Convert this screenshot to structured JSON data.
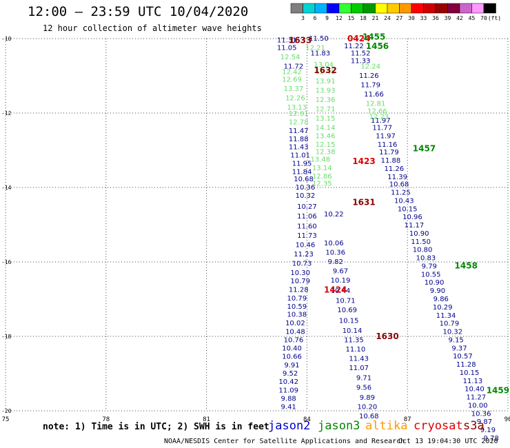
{
  "title": "12:00 – 23:59 UTC 10/04/2020",
  "subtitle": "12 hour collection of altimeter wave heights",
  "legend": {
    "unit": "(ft)",
    "ticks": [
      "3",
      "6",
      "9",
      "12",
      "15",
      "18",
      "21",
      "24",
      "27",
      "30",
      "33",
      "36",
      "39",
      "42",
      "45",
      "70"
    ],
    "colors": [
      "#7f7f7f",
      "#00d4d4",
      "#00b3ff",
      "#0000ff",
      "#33ff33",
      "#00cc00",
      "#009900",
      "#ffff00",
      "#ffcc00",
      "#ff9900",
      "#ff0000",
      "#cc0000",
      "#990000",
      "#800040",
      "#cc66cc",
      "#ff99ff",
      "#000000"
    ]
  },
  "axes": {
    "x_ticks": [
      "75",
      "78",
      "81",
      "84",
      "87",
      "90"
    ],
    "y_ticks": [
      "-10",
      "-12",
      "-14",
      "-16",
      "-18",
      "-20"
    ]
  },
  "footer": {
    "note": "note: 1) Time is in UTC; 2) SWH is in feet",
    "satellites": [
      {
        "name": "jason2",
        "color": "#0000cc"
      },
      {
        "name": "jason3",
        "color": "#008800"
      },
      {
        "name": "altika",
        "color": "#ff9900"
      },
      {
        "name": "cryosat",
        "color": "#dd0000"
      },
      {
        "name": "s3a",
        "color": "#880000"
      }
    ],
    "credit": "NOAA/NESDIS Center for Satellite Applications and Research",
    "timestamp": "Oct 13 19:04:30 UTC 2020"
  },
  "tracks": [
    {
      "color": "#00008b",
      "points": [
        {
          "lon": 83.4,
          "lat": -10.05,
          "v": "11.31"
        },
        {
          "lon": 83.4,
          "lat": -10.25,
          "v": "11.05"
        },
        {
          "lon": 83.6,
          "lat": -10.75,
          "v": "11.72"
        },
        {
          "lon": 83.75,
          "lat": -12.48,
          "v": "11.47"
        },
        {
          "lon": 83.75,
          "lat": -12.7,
          "v": "11.88"
        },
        {
          "lon": 83.75,
          "lat": -12.92,
          "v": "11.43"
        },
        {
          "lon": 83.8,
          "lat": -13.14,
          "v": "11.01"
        },
        {
          "lon": 83.85,
          "lat": -13.36,
          "v": "11.95"
        },
        {
          "lon": 83.85,
          "lat": -13.58,
          "v": "11.84"
        },
        {
          "lon": 83.9,
          "lat": -13.78,
          "v": "10.68"
        },
        {
          "lon": 83.95,
          "lat": -14.0,
          "v": "10.36"
        },
        {
          "lon": 83.95,
          "lat": -14.22,
          "v": "10.32"
        },
        {
          "lon": 84.0,
          "lat": -14.52,
          "v": "10.27"
        },
        {
          "lon": 84.0,
          "lat": -14.78,
          "v": "11.06"
        },
        {
          "lon": 84.0,
          "lat": -15.05,
          "v": "11.60"
        },
        {
          "lon": 84.0,
          "lat": -15.3,
          "v": "11.73"
        },
        {
          "lon": 83.95,
          "lat": -15.55,
          "v": "10.46"
        },
        {
          "lon": 83.9,
          "lat": -15.8,
          "v": "11.23"
        },
        {
          "lon": 83.85,
          "lat": -16.05,
          "v": "10.73"
        },
        {
          "lon": 83.8,
          "lat": -16.3,
          "v": "10.30"
        },
        {
          "lon": 83.8,
          "lat": -16.52,
          "v": "10.79"
        },
        {
          "lon": 83.75,
          "lat": -16.75,
          "v": "11.28"
        },
        {
          "lon": 83.7,
          "lat": -16.98,
          "v": "10.79"
        },
        {
          "lon": 83.7,
          "lat": -17.2,
          "v": "10.59"
        },
        {
          "lon": 83.7,
          "lat": -17.42,
          "v": "10.38"
        },
        {
          "lon": 83.65,
          "lat": -17.65,
          "v": "10.02"
        },
        {
          "lon": 83.65,
          "lat": -17.88,
          "v": "10.48"
        },
        {
          "lon": 83.6,
          "lat": -18.1,
          "v": "10.76"
        },
        {
          "lon": 83.55,
          "lat": -18.32,
          "v": "10.40"
        },
        {
          "lon": 83.55,
          "lat": -18.55,
          "v": "10.66"
        },
        {
          "lon": 83.55,
          "lat": -18.78,
          "v": "9.91"
        },
        {
          "lon": 83.5,
          "lat": -19.0,
          "v": "9.52"
        },
        {
          "lon": 83.45,
          "lat": -19.22,
          "v": "10.42"
        },
        {
          "lon": 83.45,
          "lat": -19.45,
          "v": "11.09"
        },
        {
          "lon": 83.45,
          "lat": -19.68,
          "v": "9.88"
        },
        {
          "lon": 83.45,
          "lat": -19.9,
          "v": "9.41"
        }
      ]
    },
    {
      "color": "#00008b",
      "points": [
        {
          "lon": 84.35,
          "lat": -10.0,
          "v": "11.50"
        },
        {
          "lon": 84.4,
          "lat": -10.4,
          "v": "11.83"
        },
        {
          "lon": 84.8,
          "lat": -14.72,
          "v": "10.22"
        },
        {
          "lon": 84.8,
          "lat": -15.5,
          "v": "10.06"
        },
        {
          "lon": 84.85,
          "lat": -15.75,
          "v": "10.36"
        },
        {
          "lon": 84.85,
          "lat": -16.0,
          "v": "9.82"
        },
        {
          "lon": 85.0,
          "lat": -16.25,
          "v": "9.67"
        },
        {
          "lon": 85.0,
          "lat": -16.5,
          "v": "10.19"
        },
        {
          "lon": 85.0,
          "lat": -16.78,
          "v": "10.44"
        },
        {
          "lon": 85.15,
          "lat": -17.05,
          "v": "10.71"
        },
        {
          "lon": 85.2,
          "lat": -17.3,
          "v": "10.69"
        },
        {
          "lon": 85.25,
          "lat": -17.58,
          "v": "10.15"
        },
        {
          "lon": 85.35,
          "lat": -17.85,
          "v": "10.14"
        },
        {
          "lon": 85.4,
          "lat": -18.1,
          "v": "11.35"
        },
        {
          "lon": 85.45,
          "lat": -18.35,
          "v": "11.10"
        },
        {
          "lon": 85.55,
          "lat": -18.6,
          "v": "11.43"
        },
        {
          "lon": 85.55,
          "lat": -18.85,
          "v": "11.07"
        },
        {
          "lon": 85.7,
          "lat": -19.12,
          "v": "9.71"
        },
        {
          "lon": 85.7,
          "lat": -19.38,
          "v": "9.56"
        },
        {
          "lon": 85.8,
          "lat": -19.65,
          "v": "9.89"
        },
        {
          "lon": 85.8,
          "lat": -19.9,
          "v": "10.20"
        },
        {
          "lon": 85.85,
          "lat": -20.15,
          "v": "10.68"
        }
      ]
    },
    {
      "color": "#00008b",
      "points": [
        {
          "lon": 85.4,
          "lat": -10.2,
          "v": "11.22"
        },
        {
          "lon": 85.6,
          "lat": -10.4,
          "v": "11.52"
        },
        {
          "lon": 85.6,
          "lat": -10.6,
          "v": "11.33"
        },
        {
          "lon": 85.85,
          "lat": -11.0,
          "v": "11.26"
        },
        {
          "lon": 85.9,
          "lat": -11.25,
          "v": "11.79"
        },
        {
          "lon": 86.0,
          "lat": -11.5,
          "v": "11.66"
        },
        {
          "lon": 86.2,
          "lat": -12.2,
          "v": "11.97"
        },
        {
          "lon": 86.25,
          "lat": -12.4,
          "v": "11.77"
        },
        {
          "lon": 86.35,
          "lat": -12.62,
          "v": "11.97"
        },
        {
          "lon": 86.4,
          "lat": -12.85,
          "v": "11.16"
        },
        {
          "lon": 86.45,
          "lat": -13.06,
          "v": "11.79"
        },
        {
          "lon": 86.5,
          "lat": -13.28,
          "v": "11.88"
        },
        {
          "lon": 86.6,
          "lat": -13.5,
          "v": "11.26"
        },
        {
          "lon": 86.7,
          "lat": -13.72,
          "v": "11.39"
        },
        {
          "lon": 86.75,
          "lat": -13.92,
          "v": "10.68"
        },
        {
          "lon": 86.8,
          "lat": -14.14,
          "v": "11.25"
        },
        {
          "lon": 86.9,
          "lat": -14.36,
          "v": "10.43"
        },
        {
          "lon": 87.0,
          "lat": -14.58,
          "v": "10.15"
        },
        {
          "lon": 87.15,
          "lat": -14.8,
          "v": "10.96"
        },
        {
          "lon": 87.2,
          "lat": -15.02,
          "v": "11.17"
        },
        {
          "lon": 87.35,
          "lat": -15.24,
          "v": "10.90"
        },
        {
          "lon": 87.4,
          "lat": -15.46,
          "v": "11.50"
        },
        {
          "lon": 87.45,
          "lat": -15.68,
          "v": "10.80"
        },
        {
          "lon": 87.55,
          "lat": -15.9,
          "v": "10.83"
        },
        {
          "lon": 87.65,
          "lat": -16.12,
          "v": "9.79"
        },
        {
          "lon": 87.7,
          "lat": -16.34,
          "v": "10.55"
        },
        {
          "lon": 87.8,
          "lat": -16.56,
          "v": "10.90"
        },
        {
          "lon": 87.9,
          "lat": -16.78,
          "v": "9.90"
        },
        {
          "lon": 88.0,
          "lat": -17.0,
          "v": "9.86"
        },
        {
          "lon": 88.05,
          "lat": -17.22,
          "v": "10.29"
        },
        {
          "lon": 88.15,
          "lat": -17.44,
          "v": "11.34"
        },
        {
          "lon": 88.25,
          "lat": -17.66,
          "v": "10.79"
        },
        {
          "lon": 88.35,
          "lat": -17.88,
          "v": "10.32"
        },
        {
          "lon": 88.45,
          "lat": -18.1,
          "v": "9.15"
        },
        {
          "lon": 88.55,
          "lat": -18.32,
          "v": "9.37"
        },
        {
          "lon": 88.65,
          "lat": -18.54,
          "v": "10.57"
        },
        {
          "lon": 88.75,
          "lat": -18.76,
          "v": "11.28"
        },
        {
          "lon": 88.85,
          "lat": -18.98,
          "v": "10.15"
        },
        {
          "lon": 88.95,
          "lat": -19.2,
          "v": "11.13"
        },
        {
          "lon": 89.0,
          "lat": -19.42,
          "v": "10.40"
        },
        {
          "lon": 89.05,
          "lat": -19.64,
          "v": "11.27"
        },
        {
          "lon": 89.1,
          "lat": -19.86,
          "v": "10.00"
        },
        {
          "lon": 89.2,
          "lat": -20.08,
          "v": "10.36"
        },
        {
          "lon": 89.3,
          "lat": -20.3,
          "v": "9.87"
        },
        {
          "lon": 89.4,
          "lat": -20.52,
          "v": "9.19"
        },
        {
          "lon": 89.5,
          "lat": -20.74,
          "v": "9.78"
        }
      ]
    },
    {
      "color": "#66dd66",
      "points": [
        {
          "lon": 83.5,
          "lat": -10.5,
          "v": "12.54"
        },
        {
          "lon": 83.55,
          "lat": -10.9,
          "v": "12.42"
        },
        {
          "lon": 83.55,
          "lat": -11.1,
          "v": "12.69"
        },
        {
          "lon": 83.6,
          "lat": -11.35,
          "v": "13.37"
        },
        {
          "lon": 83.65,
          "lat": -11.6,
          "v": "12.26"
        },
        {
          "lon": 83.7,
          "lat": -11.85,
          "v": "13.13"
        },
        {
          "lon": 83.75,
          "lat": -12.02,
          "v": "12.61"
        },
        {
          "lon": 83.75,
          "lat": -12.25,
          "v": "12.78"
        },
        {
          "lon": 84.25,
          "lat": -10.25,
          "v": "12.21"
        },
        {
          "lon": 84.5,
          "lat": -10.7,
          "v": "13.04"
        },
        {
          "lon": 84.55,
          "lat": -10.9,
          "v": "12.48"
        },
        {
          "lon": 84.55,
          "lat": -11.15,
          "v": "13.91"
        },
        {
          "lon": 84.55,
          "lat": -11.4,
          "v": "13.93"
        },
        {
          "lon": 84.55,
          "lat": -11.65,
          "v": "12.36"
        },
        {
          "lon": 84.55,
          "lat": -11.9,
          "v": "12.71"
        },
        {
          "lon": 84.55,
          "lat": -12.15,
          "v": "13.15"
        },
        {
          "lon": 84.55,
          "lat": -12.4,
          "v": "14.14"
        },
        {
          "lon": 84.55,
          "lat": -12.62,
          "v": "13.46"
        },
        {
          "lon": 84.55,
          "lat": -12.85,
          "v": "12.15"
        },
        {
          "lon": 84.55,
          "lat": -13.05,
          "v": "12.38"
        },
        {
          "lon": 84.4,
          "lat": -13.25,
          "v": "13.48"
        },
        {
          "lon": 84.45,
          "lat": -13.48,
          "v": "13.14"
        },
        {
          "lon": 84.45,
          "lat": -13.7,
          "v": "12.86"
        },
        {
          "lon": 84.45,
          "lat": -13.9,
          "v": "12.35"
        },
        {
          "lon": 85.9,
          "lat": -10.75,
          "v": "12.24"
        },
        {
          "lon": 86.05,
          "lat": -11.75,
          "v": "12.81"
        },
        {
          "lon": 86.1,
          "lat": -11.95,
          "v": "12.66"
        },
        {
          "lon": 86.15,
          "lat": -12.1,
          "v": "12.23"
        }
      ]
    }
  ],
  "passes": [
    {
      "label": "1633",
      "lon": 83.8,
      "lat": -10.05,
      "color": "#880000"
    },
    {
      "label": "1632",
      "lon": 84.55,
      "lat": -10.85,
      "color": "#880000"
    },
    {
      "label": "0424",
      "lon": 85.55,
      "lat": -10.0,
      "color": "#dd0000"
    },
    {
      "label": "1455",
      "lon": 86.0,
      "lat": -9.95,
      "color": "#008800"
    },
    {
      "label": "1456",
      "lon": 86.1,
      "lat": -10.2,
      "color": "#008800"
    },
    {
      "label": "1423",
      "lon": 85.7,
      "lat": -13.3,
      "color": "#dd0000"
    },
    {
      "label": "1457",
      "lon": 87.5,
      "lat": -12.95,
      "color": "#008800"
    },
    {
      "label": "1631",
      "lon": 85.7,
      "lat": -14.4,
      "color": "#880000"
    },
    {
      "label": "1458",
      "lon": 88.75,
      "lat": -16.1,
      "color": "#008800"
    },
    {
      "label": "1424",
      "lon": 84.85,
      "lat": -16.75,
      "color": "#dd0000"
    },
    {
      "label": "1630",
      "lon": 86.4,
      "lat": -18.0,
      "color": "#880000"
    },
    {
      "label": "1459",
      "lon": 89.7,
      "lat": -19.45,
      "color": "#008800"
    }
  ]
}
